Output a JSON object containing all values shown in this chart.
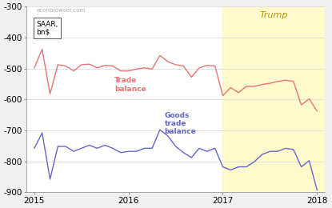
{
  "trade_balance": {
    "dates": [
      2015.0,
      2015.083,
      2015.167,
      2015.25,
      2015.333,
      2015.417,
      2015.5,
      2015.583,
      2015.667,
      2015.75,
      2015.833,
      2015.917,
      2016.0,
      2016.083,
      2016.167,
      2016.25,
      2016.333,
      2016.417,
      2016.5,
      2016.583,
      2016.667,
      2016.75,
      2016.833,
      2016.917,
      2017.0,
      2017.083,
      2017.167,
      2017.25,
      2017.333,
      2017.417,
      2017.5,
      2017.583,
      2017.667,
      2017.75,
      2017.833,
      2017.917,
      2018.0
    ],
    "values": [
      -498,
      -438,
      -582,
      -488,
      -492,
      -508,
      -488,
      -486,
      -498,
      -490,
      -492,
      -508,
      -508,
      -502,
      -498,
      -502,
      -458,
      -478,
      -488,
      -492,
      -528,
      -498,
      -490,
      -492,
      -588,
      -562,
      -578,
      -558,
      -558,
      -552,
      -548,
      -542,
      -538,
      -542,
      -618,
      -598,
      -638
    ]
  },
  "goods_trade_balance": {
    "dates": [
      2015.0,
      2015.083,
      2015.167,
      2015.25,
      2015.333,
      2015.417,
      2015.5,
      2015.583,
      2015.667,
      2015.75,
      2015.833,
      2015.917,
      2016.0,
      2016.083,
      2016.167,
      2016.25,
      2016.333,
      2016.417,
      2016.5,
      2016.583,
      2016.667,
      2016.75,
      2016.833,
      2016.917,
      2017.0,
      2017.083,
      2017.167,
      2017.25,
      2017.333,
      2017.417,
      2017.5,
      2017.583,
      2017.667,
      2017.75,
      2017.833,
      2017.917,
      2018.0
    ],
    "values": [
      -758,
      -708,
      -858,
      -752,
      -752,
      -768,
      -758,
      -748,
      -758,
      -748,
      -758,
      -772,
      -768,
      -768,
      -758,
      -758,
      -698,
      -718,
      -752,
      -772,
      -788,
      -758,
      -768,
      -758,
      -818,
      -828,
      -818,
      -818,
      -802,
      -778,
      -768,
      -768,
      -758,
      -762,
      -818,
      -798,
      -893
    ]
  },
  "trump_start": 2017.0,
  "xlim": [
    2014.917,
    2018.083
  ],
  "ylim": [
    -900,
    -300
  ],
  "yticks": [
    -900,
    -800,
    -700,
    -600,
    -500,
    -400,
    -300
  ],
  "xticks": [
    2015,
    2016,
    2017,
    2018
  ],
  "trade_color": "#e87474",
  "goods_color": "#6666cc",
  "trump_bg_color": "#fffacc",
  "trump_label_color": "#b8960c",
  "trump_label": "Trump",
  "trade_label": "Trade\nbalance",
  "goods_label": "Goods\ntrade\nbalance",
  "watermark": "econbrowser.com",
  "box_label": "SAAR,\nbn$",
  "background_color": "#f0f0f0",
  "plot_bg_color": "#ffffff",
  "grid_color": "#dddddd"
}
